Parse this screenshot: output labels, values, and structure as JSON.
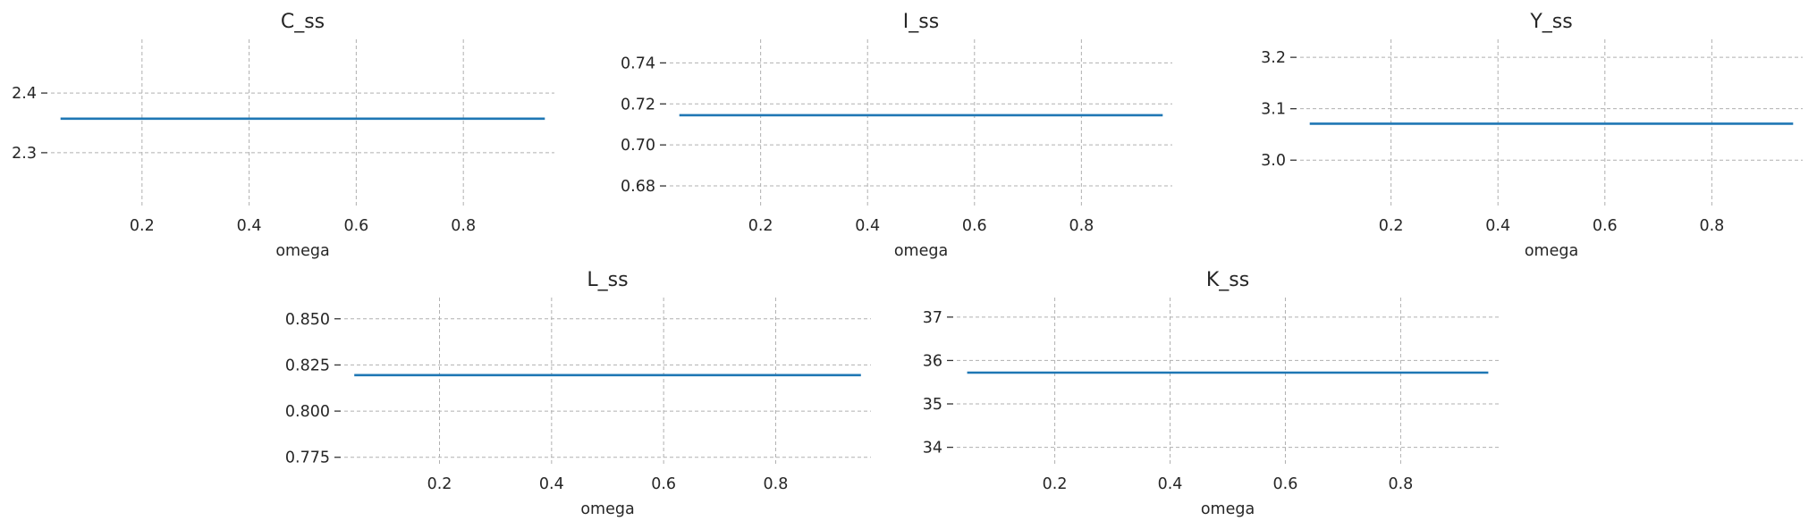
{
  "figure": {
    "background": "#ffffff",
    "line_color": "#1f77b4"
  },
  "chart_data": [
    {
      "type": "line",
      "title": "C_ss",
      "xlabel": "omega",
      "ylabel": "",
      "xlim": [
        0.03,
        0.97
      ],
      "ylim": [
        2.21,
        2.49
      ],
      "xticks": [
        0.2,
        0.4,
        0.6,
        0.8
      ],
      "xtick_labels": [
        "0.2",
        "0.4",
        "0.6",
        "0.8"
      ],
      "yticks": [
        2.3,
        2.4
      ],
      "ytick_labels": [
        "2.3",
        "2.4"
      ],
      "grid": true,
      "series": [
        {
          "x": [
            0.05,
            0.95
          ],
          "y": [
            2.357,
            2.357
          ]
        }
      ]
    },
    {
      "type": "line",
      "title": "I_ss",
      "xlabel": "omega",
      "ylabel": "",
      "xlim": [
        0.03,
        0.97
      ],
      "ylim": [
        0.67,
        0.7515
      ],
      "xticks": [
        0.2,
        0.4,
        0.6,
        0.8
      ],
      "xtick_labels": [
        "0.2",
        "0.4",
        "0.6",
        "0.8"
      ],
      "yticks": [
        0.68,
        0.7,
        0.72,
        0.74
      ],
      "ytick_labels": [
        "0.68",
        "0.70",
        "0.72",
        "0.74"
      ],
      "grid": true,
      "series": [
        {
          "x": [
            0.05,
            0.95
          ],
          "y": [
            0.7145,
            0.7145
          ]
        }
      ]
    },
    {
      "type": "line",
      "title": "Y_ss",
      "xlabel": "omega",
      "ylabel": "",
      "xlim": [
        0.03,
        0.97
      ],
      "ylim": [
        2.91,
        3.235
      ],
      "xticks": [
        0.2,
        0.4,
        0.6,
        0.8
      ],
      "xtick_labels": [
        "0.2",
        "0.4",
        "0.6",
        "0.8"
      ],
      "yticks": [
        3.0,
        3.1,
        3.2
      ],
      "ytick_labels": [
        "3.0",
        "3.1",
        "3.2"
      ],
      "grid": true,
      "series": [
        {
          "x": [
            0.05,
            0.95
          ],
          "y": [
            3.071,
            3.071
          ]
        }
      ]
    },
    {
      "type": "line",
      "title": "L_ss",
      "xlabel": "omega",
      "ylabel": "",
      "xlim": [
        0.03,
        0.97
      ],
      "ylim": [
        0.771,
        0.8615
      ],
      "xticks": [
        0.2,
        0.4,
        0.6,
        0.8
      ],
      "xtick_labels": [
        "0.2",
        "0.4",
        "0.6",
        "0.8"
      ],
      "yticks": [
        0.775,
        0.8,
        0.825,
        0.85
      ],
      "ytick_labels": [
        "0.775",
        "0.800",
        "0.825",
        "0.850"
      ],
      "grid": true,
      "series": [
        {
          "x": [
            0.05,
            0.95
          ],
          "y": [
            0.8195,
            0.8195
          ]
        }
      ]
    },
    {
      "type": "line",
      "title": "K_ss",
      "xlabel": "omega",
      "ylabel": "",
      "xlim": [
        0.03,
        0.97
      ],
      "ylim": [
        33.6,
        37.45
      ],
      "xticks": [
        0.2,
        0.4,
        0.6,
        0.8
      ],
      "xtick_labels": [
        "0.2",
        "0.4",
        "0.6",
        "0.8"
      ],
      "yticks": [
        34,
        35,
        36,
        37
      ],
      "ytick_labels": [
        "34",
        "35",
        "36",
        "37"
      ],
      "grid": true,
      "series": [
        {
          "x": [
            0.05,
            0.95
          ],
          "y": [
            35.72,
            35.72
          ]
        }
      ]
    }
  ]
}
